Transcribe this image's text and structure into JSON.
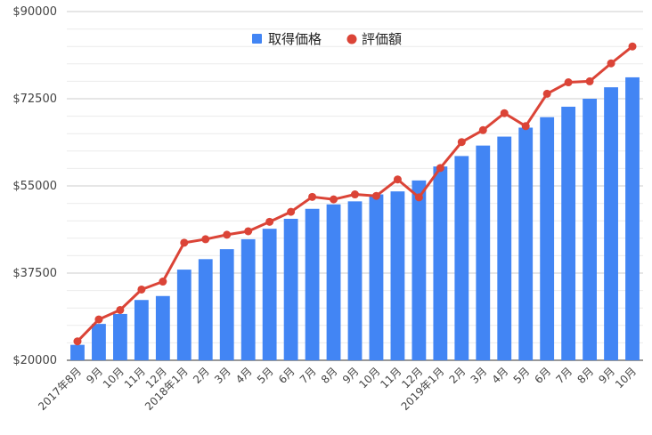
{
  "chart_data": {
    "type": "bar",
    "title": "",
    "xlabel": "",
    "ylabel": "",
    "ylim": [
      20000,
      90000
    ],
    "yticks": [
      "$20000",
      "$37500",
      "$55000",
      "$72500",
      "$90000"
    ],
    "ytick_values": [
      20000,
      37500,
      55000,
      72500,
      90000
    ],
    "grid": true,
    "legend_position": "top",
    "categories": [
      "2017年8月",
      "9月",
      "10月",
      "11月",
      "12月",
      "2018年1月",
      "2月",
      "3月",
      "4月",
      "5月",
      "6月",
      "7月",
      "8月",
      "9月",
      "10月",
      "11月",
      "12月",
      "2019年1月",
      "2月",
      "3月",
      "4月",
      "5月",
      "6月",
      "7月",
      "8月",
      "9月",
      "10月"
    ],
    "series": [
      {
        "name": "取得価格",
        "type": "bar",
        "color": "#4285f4",
        "values": [
          23100,
          27300,
          29300,
          32100,
          32900,
          38200,
          40300,
          42300,
          44300,
          46400,
          48400,
          50400,
          51300,
          51900,
          53300,
          53900,
          56100,
          58900,
          61000,
          63100,
          64900,
          66700,
          68800,
          70900,
          72500,
          74800,
          76800
        ]
      },
      {
        "name": "評価額",
        "type": "line",
        "color": "#db4437",
        "values": [
          23800,
          28200,
          30100,
          34200,
          35800,
          43600,
          44300,
          45200,
          45900,
          47800,
          49800,
          52800,
          52300,
          53300,
          53000,
          56300,
          52700,
          58600,
          63800,
          66200,
          69600,
          67000,
          73500,
          75800,
          76000,
          79600,
          83000
        ]
      }
    ]
  }
}
